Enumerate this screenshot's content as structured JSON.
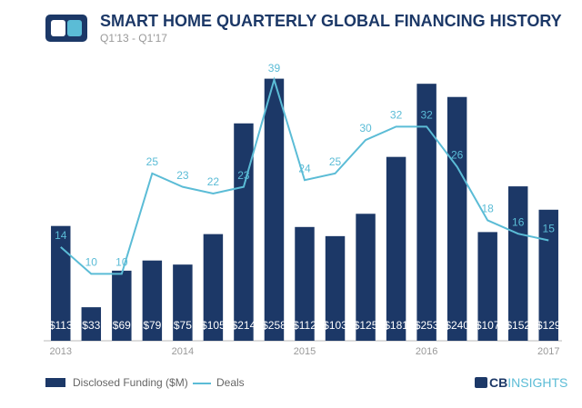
{
  "chart_data": {
    "type": "bar",
    "title": "SMART HOME QUARTERLY GLOBAL FINANCING HISTORY",
    "subtitle": "Q1'13 - Q1'17",
    "categories": [
      "2013",
      null,
      null,
      null,
      "2014",
      null,
      null,
      null,
      "2015",
      null,
      null,
      null,
      "2016",
      null,
      null,
      null,
      "2017"
    ],
    "series": [
      {
        "name": "Disclosed Funding ($M)",
        "type": "bar",
        "color": "#1c3867",
        "values": [
          113,
          33,
          69,
          79,
          75,
          105,
          214,
          258,
          112,
          103,
          125,
          181,
          253,
          240,
          107,
          152,
          129
        ],
        "value_labels": [
          "$113",
          "$33",
          "$69",
          "$79",
          "$75",
          "$105",
          "$214",
          "$258",
          "$112",
          "$103",
          "$125",
          "$181",
          "$253",
          "$240",
          "$107",
          "$152",
          "$129"
        ]
      },
      {
        "name": "Deals",
        "type": "line",
        "axis": "y2",
        "color": "#5bbcd6",
        "values": [
          14,
          10,
          10,
          25,
          23,
          22,
          23,
          39,
          24,
          25,
          30,
          32,
          32,
          26,
          18,
          16,
          15
        ]
      }
    ],
    "ylim": [
      0,
      280
    ],
    "y2lim": [
      0,
      42.5
    ],
    "logo": [
      "CB",
      "INSIGHTS"
    ]
  }
}
